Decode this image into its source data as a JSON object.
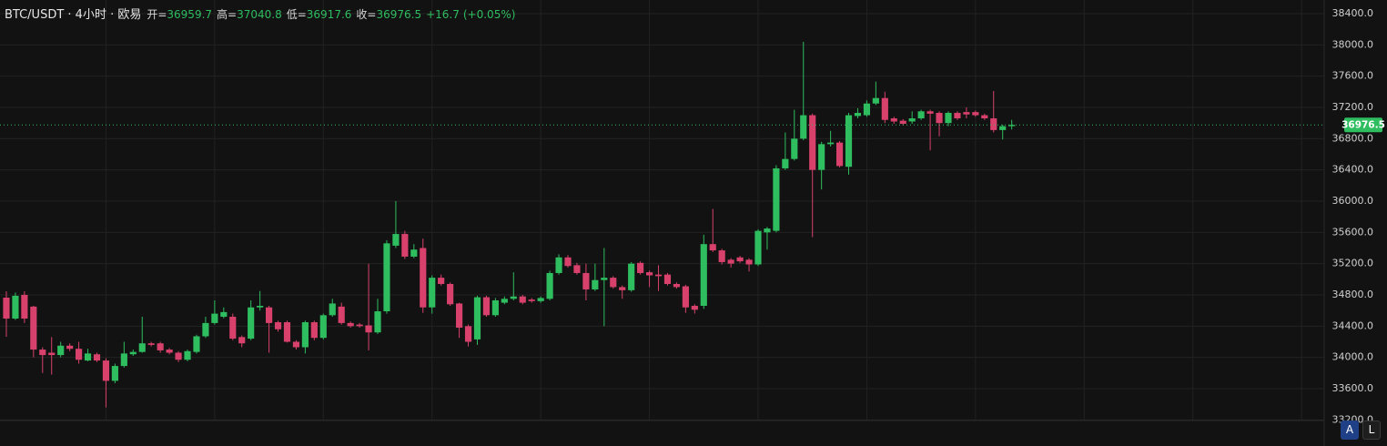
{
  "chart_data": {
    "type": "candlestick",
    "title": "BTC/USDT · 4小时 · 欧易",
    "ohlc_legend": [
      {
        "label": "开=",
        "value": 36959.7
      },
      {
        "label": "高=",
        "value": 37040.8
      },
      {
        "label": "低=",
        "value": 36917.6
      },
      {
        "label": "收=",
        "value": 36976.5
      }
    ],
    "change": "+16.7",
    "change_percent": "(+0.05%)",
    "last_price": 36976.5,
    "up_color": "#2ebd5f",
    "down_color": "#d8416c",
    "xlim": [
      -0.7,
      145.5
    ],
    "xticks": [
      11,
      23,
      35,
      47,
      59,
      71,
      83,
      95,
      107,
      119,
      131,
      143
    ],
    "ylim": [
      33192,
      38575
    ],
    "yticks": [
      {
        "value": 33200,
        "label": "33200.0"
      },
      {
        "value": 33600,
        "label": "33600.0"
      },
      {
        "value": 34000,
        "label": "34000.0"
      },
      {
        "value": 34400,
        "label": "34400.0"
      },
      {
        "value": 34800,
        "label": "34800.0"
      },
      {
        "value": 35200,
        "label": "35200.0"
      },
      {
        "value": 35600,
        "label": "35600.0"
      },
      {
        "value": 36000,
        "label": "36000.0"
      },
      {
        "value": 36400,
        "label": "36400.0"
      },
      {
        "value": 36800,
        "label": "36800.0"
      },
      {
        "value": 37200,
        "label": "37200.0"
      },
      {
        "value": 37600,
        "label": "37600.0"
      },
      {
        "value": 38000,
        "label": "38000.0"
      },
      {
        "value": 38400,
        "label": "38400.0"
      }
    ],
    "grid": true,
    "open": [
      34765,
      34497,
      34800,
      34650,
      34100,
      34060,
      34030,
      34150,
      34110,
      33960,
      34040,
      33960,
      33700,
      33890,
      34040,
      34070,
      34180,
      34180,
      34100,
      34060,
      33970,
      34070,
      34270,
      34440,
      34520,
      34520,
      34260,
      34240,
      34640,
      34640,
      34450,
      34450,
      34200,
      34130,
      34450,
      34250,
      34540,
      34650,
      34440,
      34420,
      34410,
      34320,
      34590,
      35430,
      35580,
      35290,
      35400,
      34640,
      35020,
      34940,
      34690,
      34400,
      34230,
      34770,
      34540,
      34700,
      34750,
      34780,
      34740,
      34720,
      34750,
      35080,
      35280,
      35180,
      35080,
      34870,
      34990,
      35020,
      34900,
      34860,
      35210,
      35090,
      35060,
      35060,
      34940,
      34910,
      34660,
      34660,
      35450,
      35370,
      35250,
      35280,
      35250,
      35190,
      35600,
      35620,
      36420,
      36540,
      36800,
      37100,
      36400,
      36730,
      36750,
      36440,
      37090,
      37100,
      37250,
      37320,
      37060,
      37030,
      37020,
      37060,
      37150,
      37130,
      37000,
      37130,
      37140,
      37140,
      37100,
      37060,
      36910,
      36959.7
    ],
    "high": [
      34847,
      34830,
      34847,
      34660,
      34130,
      34260,
      34200,
      34180,
      34200,
      34110,
      34060,
      33990,
      33920,
      34200,
      34100,
      34520,
      34200,
      34200,
      34120,
      34080,
      34100,
      34290,
      34520,
      34730,
      34640,
      34560,
      34280,
      34730,
      34850,
      34660,
      34470,
      34470,
      34220,
      34470,
      34470,
      34560,
      34750,
      34700,
      34460,
      34440,
      35200,
      34750,
      35500,
      36000,
      35620,
      35450,
      35520,
      35050,
      35060,
      34960,
      34700,
      34420,
      34790,
      34790,
      34760,
      34780,
      35090,
      34800,
      34760,
      34780,
      35110,
      35320,
      35310,
      35210,
      35200,
      35200,
      35400,
      35040,
      34920,
      35220,
      35230,
      35110,
      35180,
      35080,
      34960,
      34930,
      34680,
      35570,
      35900,
      35390,
      35270,
      35300,
      35270,
      35640,
      35670,
      36460,
      36880,
      37170,
      38040,
      37120,
      36760,
      36900,
      36770,
      37130,
      37190,
      37290,
      37530,
      37400,
      37080,
      37050,
      37150,
      37170,
      37170,
      37150,
      37150,
      37150,
      37200,
      37160,
      37120,
      37410,
      36980,
      37040.8
    ],
    "low": [
      34264,
      34480,
      34440,
      34000,
      33800,
      33780,
      34000,
      34080,
      33920,
      33950,
      33940,
      33360,
      33670,
      33870,
      34020,
      34060,
      34140,
      34060,
      34040,
      33940,
      33950,
      34050,
      34250,
      34420,
      34500,
      34220,
      34130,
      34220,
      34600,
      34060,
      34330,
      34190,
      34100,
      34050,
      34220,
      34230,
      34520,
      34420,
      34380,
      34380,
      34090,
      34300,
      34560,
      35400,
      35260,
      35270,
      34570,
      34560,
      34920,
      34660,
      34250,
      34140,
      34160,
      34520,
      34520,
      34680,
      34730,
      34680,
      34700,
      34700,
      34730,
      35060,
      35150,
      35060,
      34730,
      34850,
      34400,
      34880,
      34750,
      34840,
      35060,
      34900,
      34850,
      34920,
      34880,
      34570,
      34560,
      34620,
      35350,
      35190,
      35150,
      35210,
      35100,
      35170,
      35380,
      35600,
      36400,
      36520,
      36780,
      35540,
      36150,
      36700,
      36430,
      36340,
      37060,
      37080,
      37230,
      37000,
      36990,
      36970,
      36990,
      37040,
      36650,
      36830,
      36960,
      37040,
      37060,
      37080,
      37040,
      36880,
      36790,
      36917.6
    ],
    "close": [
      34497,
      34789,
      34497,
      34100,
      34030,
      34030,
      34150,
      34110,
      33970,
      34050,
      33960,
      33700,
      33890,
      34050,
      34070,
      34180,
      34160,
      34090,
      34060,
      33970,
      34080,
      34270,
      34440,
      34560,
      34580,
      34240,
      34180,
      34640,
      34660,
      34440,
      34360,
      34200,
      34130,
      34450,
      34250,
      34540,
      34690,
      34440,
      34400,
      34400,
      34320,
      34590,
      35460,
      35580,
      35290,
      35380,
      34640,
      35020,
      34940,
      34680,
      34380,
      34200,
      34770,
      34540,
      34730,
      34750,
      34780,
      34700,
      34720,
      34760,
      35080,
      35280,
      35170,
      35080,
      34870,
      34990,
      35020,
      34900,
      34860,
      35200,
      35080,
      35050,
      35040,
      34940,
      34900,
      34640,
      34610,
      35450,
      35370,
      35220,
      35200,
      35230,
      35190,
      35620,
      35650,
      36420,
      36540,
      36800,
      37100,
      36400,
      36730,
      36750,
      36450,
      37100,
      37130,
      37250,
      37320,
      37040,
      37020,
      36990,
      37060,
      37150,
      37120,
      37000,
      37130,
      37060,
      37110,
      37100,
      37060,
      36910,
      36960,
      36976.5
    ],
    "buttons": [
      "A",
      "L"
    ]
  }
}
